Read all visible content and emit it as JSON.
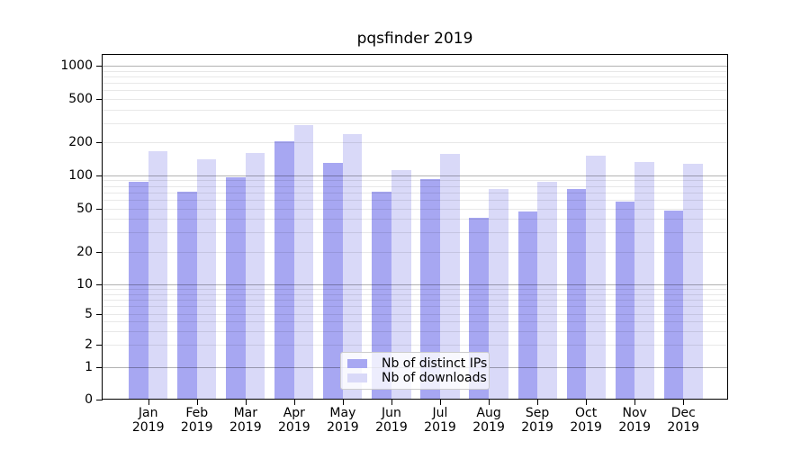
{
  "chart_data": {
    "type": "bar",
    "title": "pqsfinder 2019",
    "categories": [
      "Jan",
      "Feb",
      "Mar",
      "Apr",
      "May",
      "Jun",
      "Jul",
      "Aug",
      "Sep",
      "Oct",
      "Nov",
      "Dec"
    ],
    "category_year": "2019",
    "series": [
      {
        "name": "Nb of distinct IPs",
        "color": "#a7a7f2",
        "values": [
          87,
          71,
          96,
          206,
          130,
          71,
          92,
          41,
          47,
          75,
          58,
          48
        ]
      },
      {
        "name": "Nb of downloads",
        "color": "#d9d9f8",
        "values": [
          165,
          140,
          160,
          288,
          238,
          111,
          157,
          75,
          87,
          151,
          132,
          127
        ]
      }
    ],
    "xlabel": "",
    "ylabel": "",
    "yticks": [
      0,
      1,
      2,
      5,
      10,
      20,
      50,
      100,
      200,
      500,
      1000
    ],
    "ylim": [
      0,
      1300
    ],
    "yscale": "symlog",
    "grid": {
      "orientation": "horizontal",
      "major_at": [
        1,
        10,
        100,
        1000
      ],
      "minor_multiples": [
        2,
        3,
        4,
        5,
        6,
        7,
        8,
        9
      ]
    },
    "legend_position": "lower center inside plot"
  },
  "colors": {
    "background": "#ffffff",
    "spine": "#000000",
    "grid_major": "rgba(0,0,0,0.30)",
    "grid_minor": "rgba(0,0,0,0.09)",
    "text": "#000000",
    "legend_border": "#cccccc",
    "legend_background": "rgba(255,255,255,0.8)"
  }
}
